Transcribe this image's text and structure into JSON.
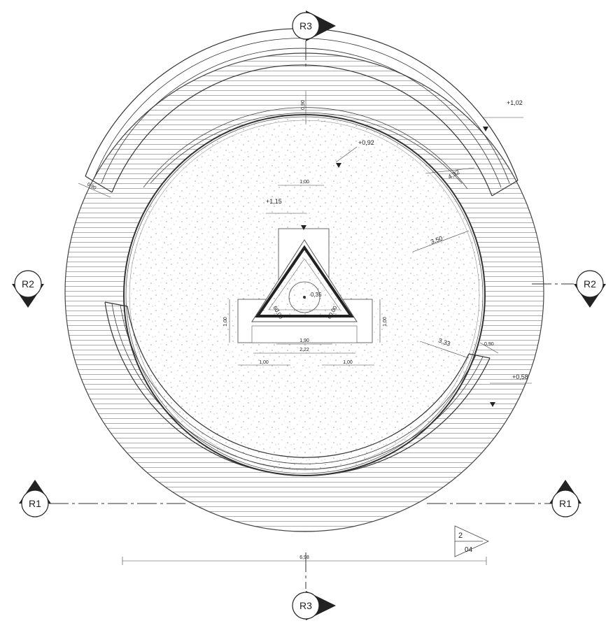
{
  "sections": {
    "r1": "R1",
    "r2": "R2",
    "r3": "R3"
  },
  "elevations": {
    "top_right": "+1,02",
    "inner_ring": "+0,92",
    "center": "+1,15",
    "right_lower": "+0,58"
  },
  "dimensions": {
    "width_090_top": "0,90",
    "width_090_left": "0,90",
    "width_090_right": "0,90",
    "radius_432": "4,32",
    "radius_350": "3,50",
    "radius_333": "3,33",
    "top_100": "1,00",
    "center_035": "0,35",
    "angle_left": "60,00",
    "angle_right": "60,00",
    "height_left_100": "1,00",
    "height_right_100": "1,00",
    "base_190": "1,90",
    "base_222": "2,22",
    "bottom_left_100": "1,00",
    "bottom_right_100": "1,00",
    "overall_698": "6,98"
  },
  "detail_ref": {
    "number": "2",
    "sheet": "04"
  }
}
